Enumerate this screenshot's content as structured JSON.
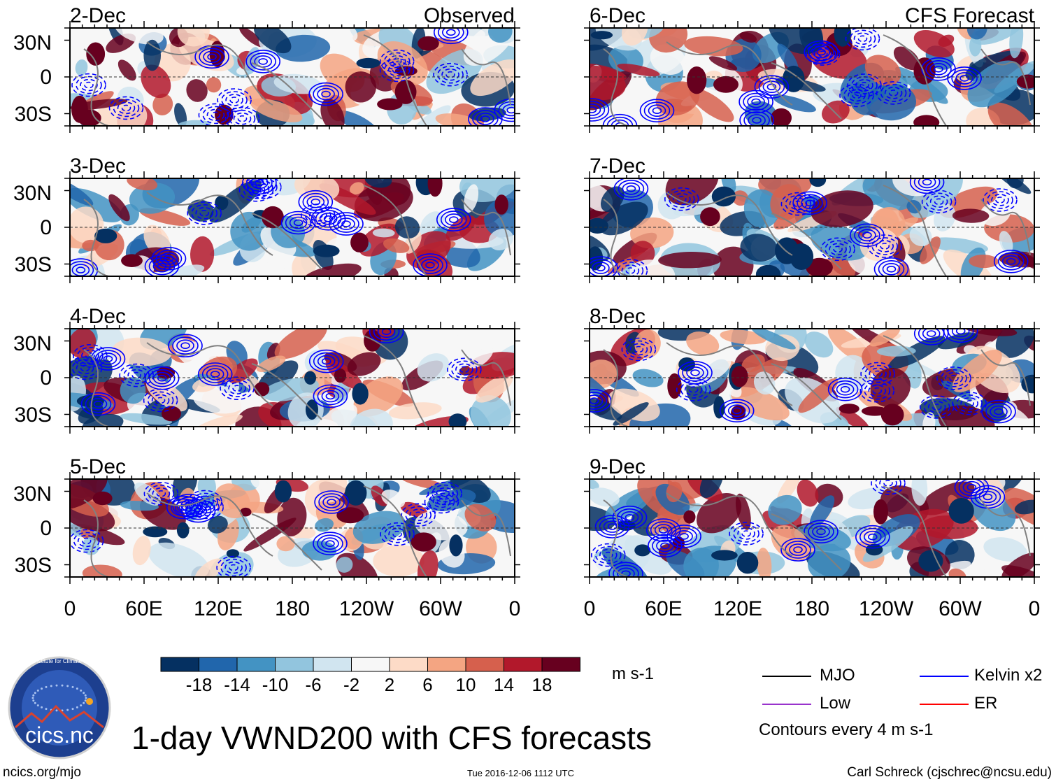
{
  "chart_data": {
    "type": "heatmap",
    "title": "1-day VWND200 with CFS forecasts",
    "variable": "VWND200",
    "units": "m s-1",
    "columns": [
      {
        "label": "Observed",
        "dates": [
          "2-Dec",
          "3-Dec",
          "4-Dec",
          "5-Dec"
        ]
      },
      {
        "label": "CFS Forecast",
        "dates": [
          "6-Dec",
          "7-Dec",
          "8-Dec",
          "9-Dec"
        ]
      }
    ],
    "x_ticks": [
      "0",
      "60E",
      "120E",
      "180",
      "120W",
      "60W",
      "0"
    ],
    "x_range_deg": [
      0,
      360
    ],
    "y_ticks": [
      "30N",
      "0",
      "30S"
    ],
    "y_range_deg": [
      -40,
      40
    ],
    "colorbar": {
      "levels": [
        "-18",
        "-14",
        "-10",
        "-6",
        "-2",
        "2",
        "6",
        "10",
        "14",
        "18"
      ],
      "colors": [
        "#053061",
        "#2166ac",
        "#4393c3",
        "#92c5de",
        "#d1e5f0",
        "#f7f7f7",
        "#fddbc7",
        "#f4a582",
        "#d6604d",
        "#b2182b",
        "#67001f"
      ]
    },
    "legend": [
      {
        "label": "MJO",
        "color": "#000000"
      },
      {
        "label": "Kelvin x2",
        "color": "#0000ff"
      },
      {
        "label": "Low",
        "color": "#9933cc"
      },
      {
        "label": "ER",
        "color": "#ff0000"
      }
    ],
    "contour_note": "Contours every 4 m s-1"
  },
  "footer": {
    "site": "ncics.org/mjo",
    "timestamp": "Tue 2016-12-06 1112 UTC",
    "author": "Carl Schreck (cjschrec@ncsu.edu)"
  },
  "logo": {
    "text": "cics.nc",
    "ring_text": "Cooperative Institute for Climate and Satellites"
  }
}
